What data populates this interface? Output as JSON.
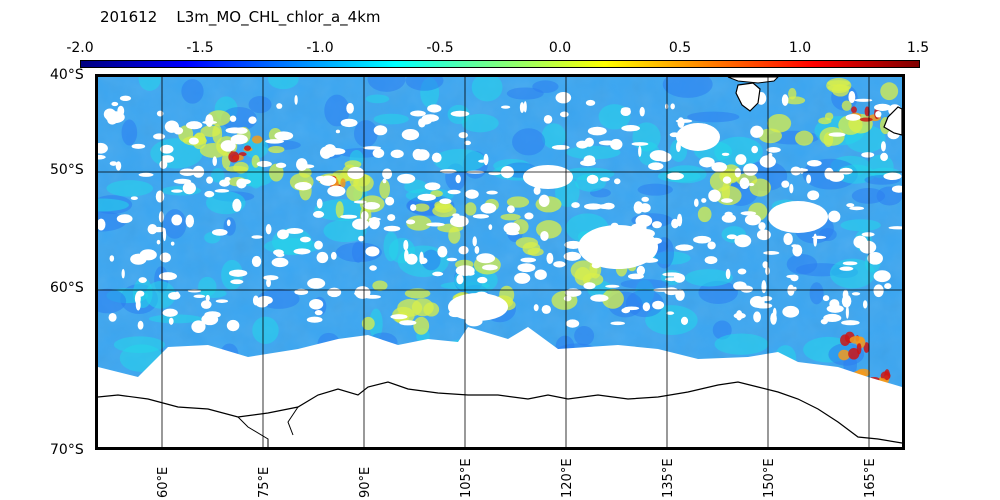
{
  "title": "201612    L3m_MO_CHL_chlor_a_4km",
  "colorbar": {
    "ticks": [
      "-2.0",
      "-1.5",
      "-1.0",
      "-0.5",
      "0.0",
      "0.5",
      "1.0",
      "1.5"
    ],
    "colors": [
      "#00007f",
      "#0000ff",
      "#007fff",
      "#00ffff",
      "#7fff7f",
      "#ffff00",
      "#ff7f00",
      "#ff0000",
      "#7f0000"
    ]
  },
  "lat_labels": [
    "40°S",
    "50°S",
    "60°S",
    "70°S"
  ],
  "lon_labels": [
    "60°E",
    "75°E",
    "90°E",
    "105°E",
    "120°E",
    "135°E",
    "150°E",
    "165°E"
  ],
  "colors": {
    "ocean_main": "#3aa6f2",
    "ocean_cyan": "#25d6ea",
    "ocean_blue": "#2c7ef0",
    "high_yellow": "#d9ef4a",
    "high_orange": "#f39a1c",
    "high_red": "#cc1515",
    "land": "#ffffff",
    "coast": "#000000"
  }
}
